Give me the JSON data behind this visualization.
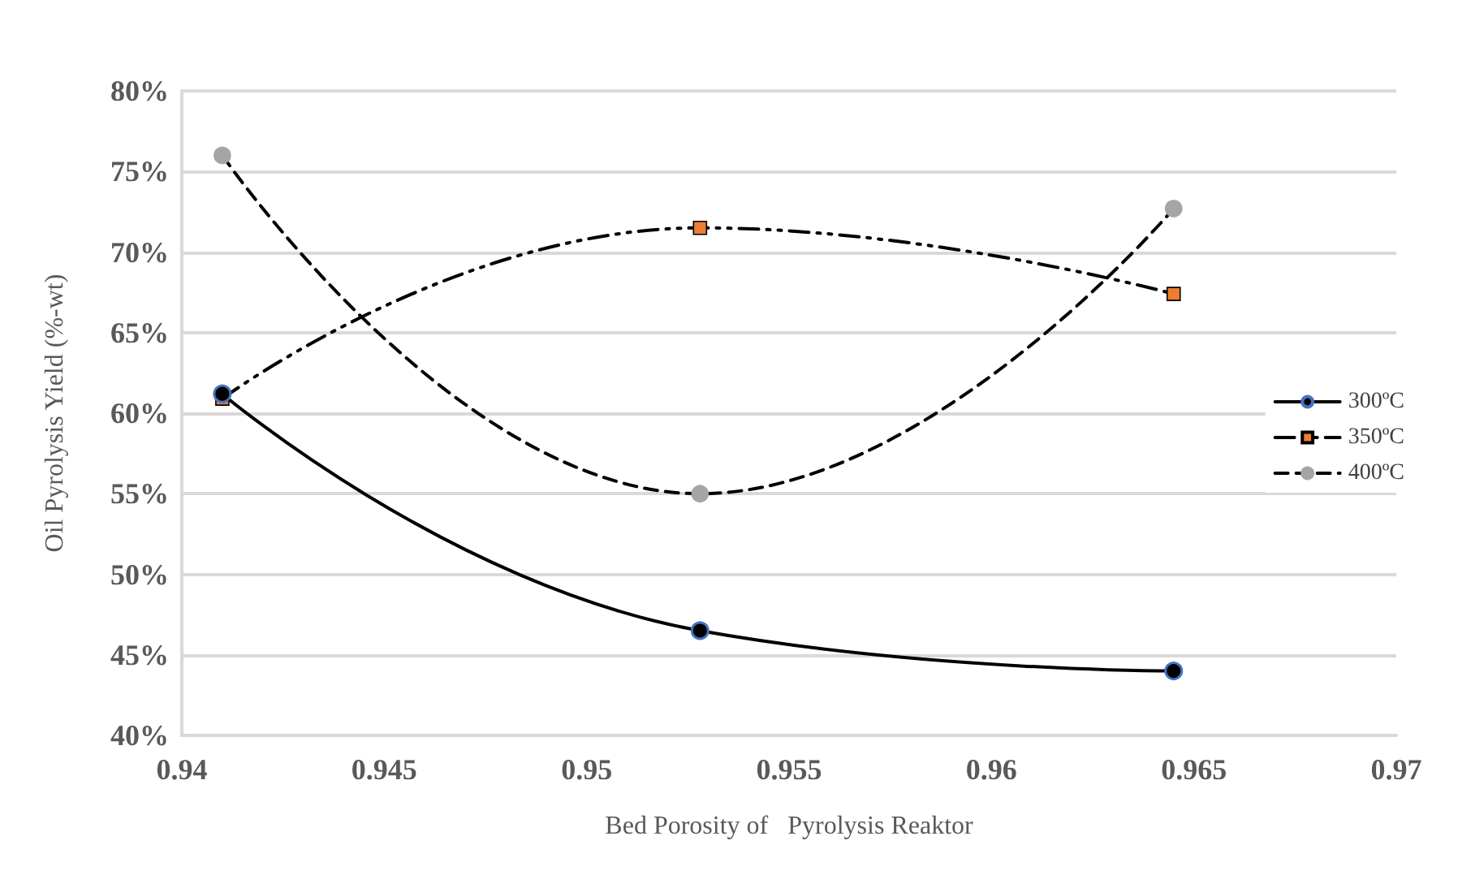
{
  "chart_data": {
    "type": "line",
    "xlabel": "Bed Porosity of   Pyrolysis Reaktor",
    "ylabel": "Oil Pyrolysis Yield (%-wt)",
    "x": [
      0.941,
      0.9528,
      0.9645
    ],
    "series": [
      {
        "name": "300ºC",
        "color": "#000000",
        "values": [
          61.2,
          46.5,
          44.0
        ],
        "marker": "circle",
        "line_style": "solid"
      },
      {
        "name": "350ºC",
        "color": "#ed7d31",
        "values": [
          60.9,
          71.5,
          67.4
        ],
        "marker": "square",
        "line_style": "dashdot"
      },
      {
        "name": "400ºC",
        "color": "#a5a5a5",
        "values": [
          76.0,
          55.0,
          72.7
        ],
        "marker": "circle",
        "line_style": "dashed"
      }
    ],
    "xlim": [
      0.94,
      0.97
    ],
    "xticks": [
      0.94,
      0.945,
      0.95,
      0.955,
      0.96,
      0.965,
      0.97
    ],
    "ylim": [
      40,
      80
    ],
    "yticks": [
      {
        "value": 40,
        "label": "40%"
      },
      {
        "value": 45,
        "label": "45%"
      },
      {
        "value": 50,
        "label": "50%"
      },
      {
        "value": 55,
        "label": "55%"
      },
      {
        "value": 60,
        "label": "60%"
      },
      {
        "value": 65,
        "label": "65%"
      },
      {
        "value": 70,
        "label": "70%"
      },
      {
        "value": 75,
        "label": "75%"
      },
      {
        "value": 80,
        "label": "80%"
      }
    ],
    "grid": "y",
    "legend": "right"
  }
}
